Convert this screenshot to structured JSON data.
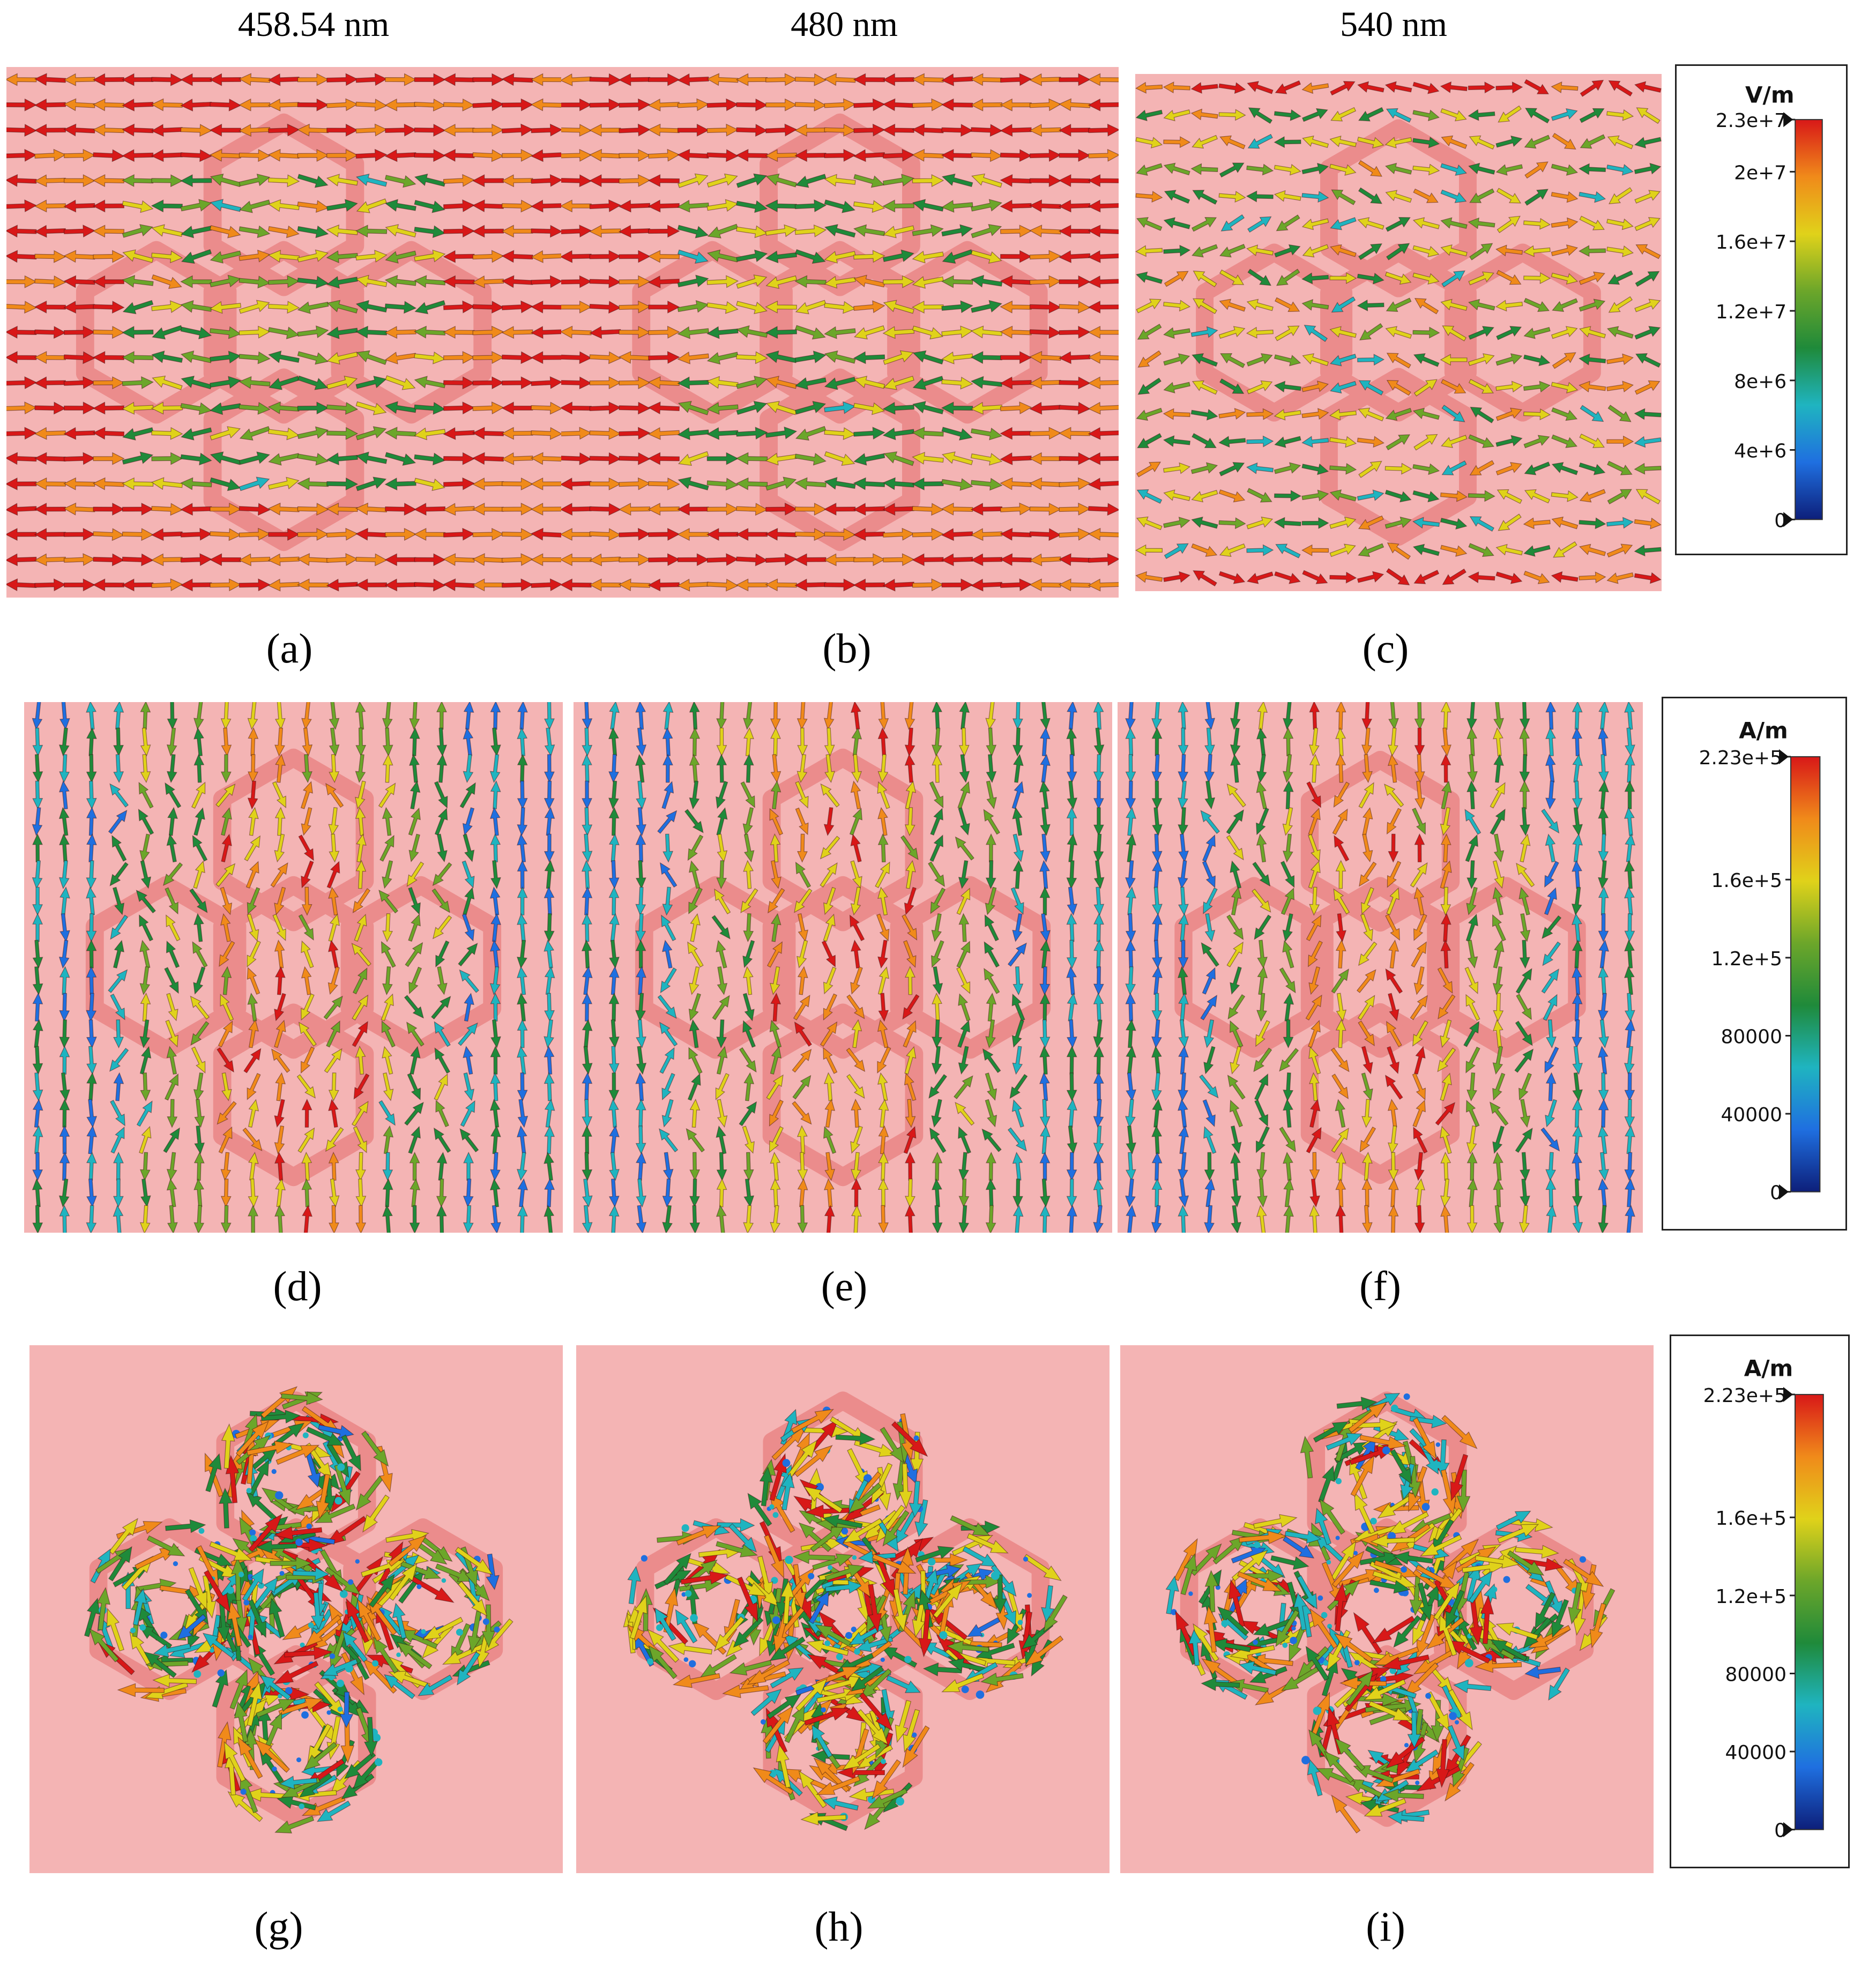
{
  "figure": {
    "wavelengths": [
      "458.54 nm",
      "480 nm",
      "540 nm"
    ],
    "rows": [
      {
        "id": "row-e-field",
        "legend": {
          "unit": "V/m",
          "max": "2.3e+7",
          "ticks": [
            "2e+7",
            "1.6e+7",
            "1.2e+7",
            "8e+6",
            "4e+6",
            "0"
          ]
        },
        "panels": [
          {
            "label": "(a)",
            "pattern": "horizontal"
          },
          {
            "label": "(b)",
            "pattern": "horizontal"
          },
          {
            "label": "(c)",
            "pattern": "mixed"
          }
        ]
      },
      {
        "id": "row-h-field",
        "legend": {
          "unit": "A/m",
          "max": "2.23e+5",
          "ticks": [
            "1.6e+5",
            "1.2e+5",
            "80000",
            "40000",
            "0"
          ]
        },
        "panels": [
          {
            "label": "(d)",
            "pattern": "vertical"
          },
          {
            "label": "(e)",
            "pattern": "vertical"
          },
          {
            "label": "(f)",
            "pattern": "vertical"
          }
        ]
      },
      {
        "id": "row-surface-current",
        "legend": {
          "unit": "A/m",
          "max": "2.23e+5",
          "ticks": [
            "1.6e+5",
            "1.2e+5",
            "80000",
            "40000",
            "0"
          ]
        },
        "panels": [
          {
            "label": "(g)",
            "pattern": "scatter"
          },
          {
            "label": "(h)",
            "pattern": "scatter"
          },
          {
            "label": "(i)",
            "pattern": "scatter"
          }
        ]
      }
    ],
    "colormap": [
      "#0d1f7a",
      "#1f6fe0",
      "#1fb4c0",
      "#1f8a3a",
      "#6ca62a",
      "#e0d21a",
      "#f08a1a",
      "#d81818"
    ],
    "background_color": "#f4b4b4",
    "structure_color": "#eb8c8c"
  }
}
